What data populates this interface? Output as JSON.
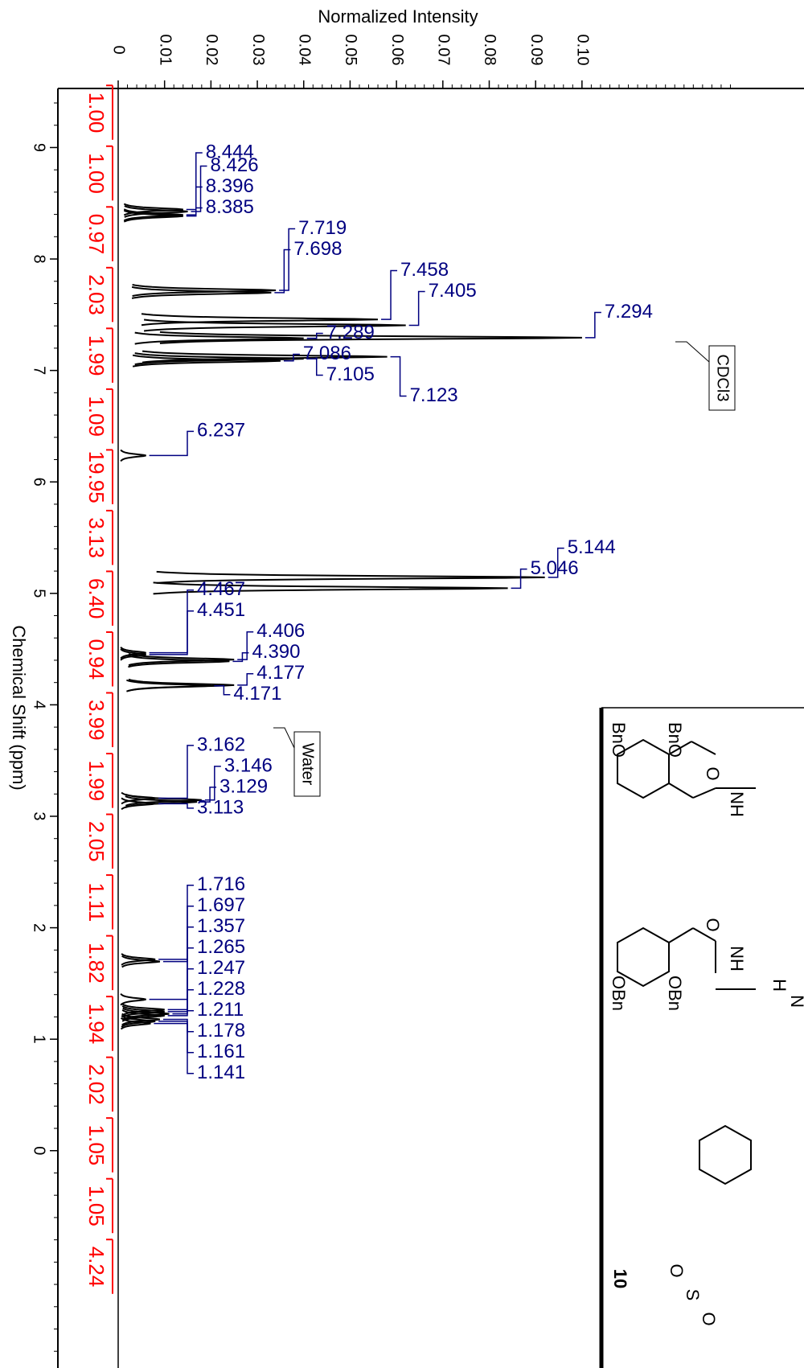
{
  "chart_data": {
    "type": "nmr",
    "x_label": "Normalized Intensity",
    "y_label": "Chemical Shift (ppm)",
    "xlim": [
      -0.013,
      0.134
    ],
    "ylim": [
      9.53,
      -1.95
    ],
    "xticks": [
      0,
      0.01,
      0.02,
      0.03,
      0.04,
      0.05,
      0.06,
      0.07,
      0.08,
      0.09,
      {
        "value": 0.1,
        "label": "0.10"
      }
    ],
    "yticks": [
      9,
      8,
      7,
      6,
      5,
      4,
      3,
      2,
      1,
      0
    ],
    "color": "#000000",
    "label_color": "#000080",
    "peaks": {
      "x": [
        8.444,
        8.426,
        8.396,
        8.385,
        7.719,
        7.698,
        7.458,
        7.405,
        7.294,
        7.289,
        7.086,
        7.105,
        7.123,
        6.237,
        5.144,
        5.046,
        4.467,
        4.451,
        4.406,
        4.39,
        4.177,
        4.171,
        3.162,
        3.146,
        3.129,
        3.113,
        1.716,
        1.697,
        1.357,
        1.265,
        1.247,
        1.228,
        1.211,
        1.178,
        1.161,
        1.141
      ],
      "x_labels": [
        "8.444",
        "8.426",
        "8.396",
        "8.385",
        "7.719",
        "7.698",
        "7.458",
        "7.405",
        "7.294",
        "7.289",
        "7.086",
        "7.105",
        "7.123",
        "6.237",
        "5.144",
        "5.046",
        "4.467",
        "4.451",
        "4.406",
        "4.390",
        "4.177",
        "4.171",
        "3.162",
        "3.146",
        "3.129",
        "3.113",
        "1.716",
        "1.697",
        "1.357",
        "1.265",
        "1.247",
        "1.228",
        "1.211",
        "1.178",
        "1.161",
        "1.141"
      ],
      "values": [
        0.014,
        0.015,
        0.014,
        0.014,
        0.034,
        0.033,
        0.056,
        0.062,
        0.1,
        0.04,
        0.035,
        0.04,
        0.058,
        0.006,
        0.092,
        0.084,
        0.006,
        0.006,
        0.025,
        0.024,
        0.025,
        0.02,
        0.008,
        0.018,
        0.017,
        0.008,
        0.008,
        0.009,
        0.006,
        0.01,
        0.01,
        0.011,
        0.01,
        0.009,
        0.008,
        0.007
      ]
    },
    "integrals": {
      "color": "#ff0000",
      "values": [
        1,
        1,
        0.97,
        2.03,
        1.99,
        1.09,
        19.95,
        3.13,
        6.4,
        0.94,
        3.99,
        1.99,
        2.05,
        1.11,
        1.82,
        1.94,
        2.02,
        1.05,
        1.05,
        4.24
      ],
      "value_labels": [
        "1.00",
        "1.00",
        "0.97",
        "2.03",
        "1.99",
        "1.09",
        "19.95",
        "3.13",
        "6.40",
        "0.94",
        "3.99",
        "1.99",
        "2.05",
        "1.11",
        "1.82",
        "1.94",
        "2.02",
        "1.05",
        "1.05",
        "4.24"
      ]
    },
    "annotations": [
      "CDCl3",
      "Water"
    ]
  },
  "structure": {
    "labels": [
      "BnO",
      "BnO",
      "O",
      "NH",
      "O",
      "NH",
      "OBn",
      "OBn",
      "H",
      "N",
      "10",
      "O",
      "S",
      "O"
    ]
  }
}
